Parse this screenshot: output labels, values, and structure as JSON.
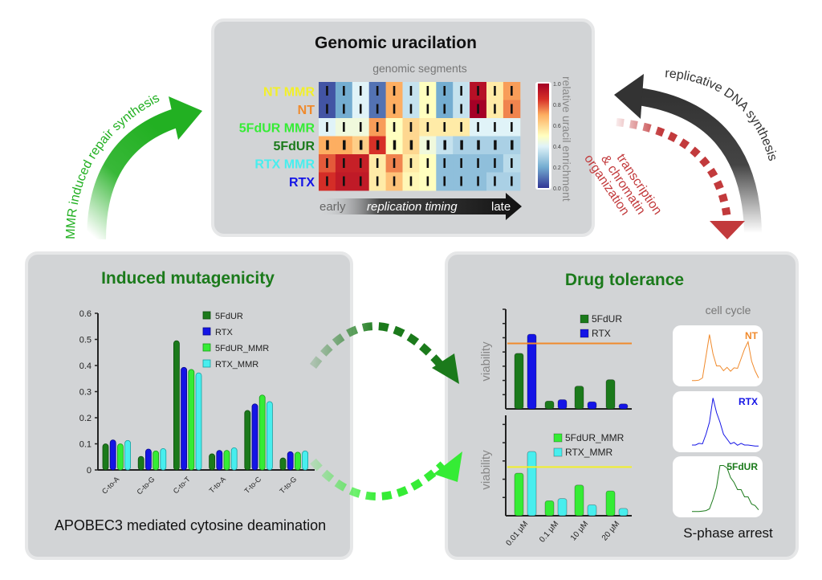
{
  "top_panel": {
    "title": "Genomic uracilation",
    "subtitle": "genomic segments",
    "colorbar_label": "relative uracil enrichment",
    "colorbar_ticks": [
      "1.0",
      "0.8",
      "0.6",
      "0.4",
      "0.2",
      "0.0"
    ],
    "timing_early": "early",
    "timing_label": "replication timing",
    "timing_late": "late"
  },
  "left_panel": {
    "title": "Induced mutagenicity",
    "caption": "APOBEC3 mediated cytosine deamination"
  },
  "right_panel": {
    "title": "Drug tolerance",
    "ylabel": "viability",
    "cell_cycle_title": "cell cycle",
    "caption": "S-phase arrest"
  },
  "arrows": {
    "mmr": "MMR induced repair synthesis",
    "replicative": "replicative DNA synthesis",
    "transcription": [
      "transcription",
      "& chromatin",
      "organization"
    ]
  },
  "colors": {
    "5FdUR": "#1b7a1b",
    "RTX": "#1414e6",
    "5FdUR_MMR": "#35ec35",
    "RTX_MMR": "#48eeee",
    "NT": "#f08a2c",
    "NT MMR": "#f2ef2a",
    "red": "#c23a3c",
    "green": "#22b022"
  },
  "chart_data": [
    {
      "type": "heatmap",
      "title": "Genomic uracilation",
      "xlabel": "genomic segments",
      "rows": [
        {
          "label": "NT MMR",
          "color": "#f2ef2a",
          "values": [
            0.05,
            0.2,
            0.4,
            0.1,
            0.7,
            0.35,
            0.5,
            0.2,
            0.35,
            0.95,
            0.55,
            0.72
          ]
        },
        {
          "label": "NT",
          "color": "#f08a2c",
          "values": [
            0.05,
            0.2,
            0.4,
            0.1,
            0.7,
            0.35,
            0.5,
            0.2,
            0.35,
            1.0,
            0.55,
            0.75
          ]
        },
        {
          "label": "5FdUR MMR",
          "color": "#35ec35",
          "values": [
            0.4,
            0.45,
            0.45,
            0.72,
            0.5,
            0.6,
            0.55,
            0.55,
            0.55,
            0.4,
            0.4,
            0.4
          ]
        },
        {
          "label": "5FdUR",
          "color": "#1b7a1b",
          "values": [
            0.7,
            0.7,
            0.62,
            0.85,
            0.5,
            0.6,
            0.45,
            0.35,
            0.3,
            0.3,
            0.3,
            0.3
          ]
        },
        {
          "label": "RTX MMR",
          "color": "#48eeee",
          "values": [
            0.8,
            0.9,
            0.9,
            0.55,
            0.75,
            0.55,
            0.5,
            0.25,
            0.25,
            0.25,
            0.25,
            0.33
          ]
        },
        {
          "label": "RTX",
          "color": "#1414e6",
          "values": [
            0.86,
            0.92,
            0.92,
            0.55,
            0.65,
            0.52,
            0.5,
            0.25,
            0.25,
            0.25,
            0.3,
            0.3
          ]
        }
      ],
      "zlim": [
        0,
        1
      ]
    },
    {
      "type": "bar",
      "title": "Induced mutagenicity",
      "categories": [
        "C-to-A",
        "C-to-G",
        "C-to-T",
        "T-to-A",
        "T-to-C",
        "T-to-G"
      ],
      "series": [
        {
          "name": "5FdUR",
          "values": [
            0.1,
            0.052,
            0.495,
            0.062,
            0.228,
            0.046
          ]
        },
        {
          "name": "RTX",
          "values": [
            0.115,
            0.08,
            0.393,
            0.075,
            0.253,
            0.07
          ]
        },
        {
          "name": "5FdUR_MMR",
          "values": [
            0.1,
            0.073,
            0.385,
            0.075,
            0.287,
            0.068
          ]
        },
        {
          "name": "RTX_MMR",
          "values": [
            0.113,
            0.082,
            0.372,
            0.085,
            0.262,
            0.073
          ]
        }
      ],
      "yticks": [
        "0",
        "0.1",
        "0.2",
        "0.3",
        "0.4",
        "0.5",
        "0.6"
      ],
      "ylim": [
        0,
        0.6
      ],
      "legend": "top-right"
    },
    {
      "type": "bar",
      "ylabel": "viability",
      "categories": [
        "0.01 µM",
        "0.1 µM",
        "10 µM",
        "20 µM"
      ],
      "series": [
        {
          "name": "5FdUR",
          "values": [
            3.9,
            0.55,
            1.6,
            2.05
          ]
        },
        {
          "name": "RTX",
          "values": [
            5.25,
            0.65,
            0.5,
            0.35
          ]
        }
      ],
      "threshold": {
        "value": 4.6,
        "color": "#f08a2c"
      },
      "ylim": [
        0,
        7
      ]
    },
    {
      "type": "bar",
      "ylabel": "viability",
      "categories": [
        "0.01 µM",
        "0.1 µM",
        "10 µM",
        "20 µM"
      ],
      "series": [
        {
          "name": "5FdUR_MMR",
          "values": [
            2.33,
            0.82,
            1.68,
            1.36
          ]
        },
        {
          "name": "RTX_MMR",
          "values": [
            3.52,
            0.94,
            0.6,
            0.4
          ]
        }
      ],
      "threshold": {
        "value": 2.67,
        "color": "#f2ef2a"
      },
      "ylim": [
        0,
        5.5
      ]
    },
    {
      "type": "line",
      "title": "cell cycle",
      "series": [
        {
          "name": "NT",
          "color": "#f08a2c",
          "values": [
            0.02,
            0.02,
            0.03,
            0.1,
            0.5,
            1.0,
            0.55,
            0.35,
            0.3,
            0.25,
            0.27,
            0.24,
            0.26,
            0.3,
            0.45,
            0.7,
            0.8,
            0.45,
            0.2,
            0.1
          ]
        },
        {
          "name": "RTX",
          "color": "#1414e6",
          "values": [
            0.05,
            0.05,
            0.06,
            0.1,
            0.25,
            0.55,
            1.0,
            0.75,
            0.5,
            0.3,
            0.15,
            0.1,
            0.08,
            0.07,
            0.06,
            0.05,
            0.05,
            0.04,
            0.03,
            0.03
          ]
        },
        {
          "name": "5FdUR",
          "color": "#1b7a1b",
          "values": [
            0.02,
            0.02,
            0.02,
            0.03,
            0.04,
            0.1,
            0.25,
            0.55,
            0.95,
            1.0,
            0.9,
            0.75,
            0.6,
            0.5,
            0.45,
            0.35,
            0.3,
            0.2,
            0.12,
            0.08
          ]
        }
      ]
    }
  ]
}
